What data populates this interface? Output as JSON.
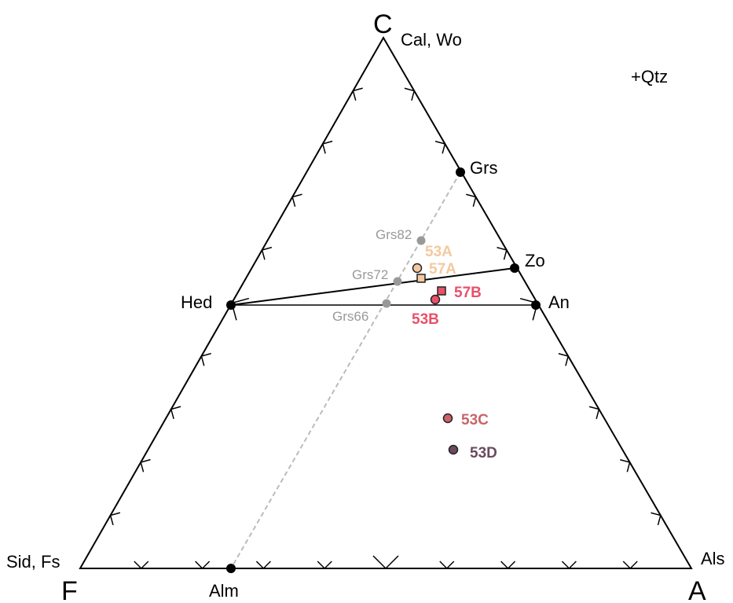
{
  "vertices": {
    "C": {
      "letter": "C",
      "minerals": "Cal, Wo"
    },
    "F": {
      "letter": "F",
      "minerals": "Sid, Fs"
    },
    "A": {
      "letter": "A",
      "minerals": "Als"
    }
  },
  "assemblage_note": "+Qtz",
  "phases": {
    "grs": "Grs",
    "zo": "Zo",
    "an": "An",
    "hed": "Hed",
    "alm": "Alm"
  },
  "garnet_points": {
    "grs82": "Grs82",
    "grs72": "Grs72",
    "grs66": "Grs66"
  },
  "samples": [
    {
      "id": "53A",
      "label": "53A",
      "marker": "circle",
      "color": "#f5c8a0",
      "label_color": "#f5c8a0"
    },
    {
      "id": "57A",
      "label": "57A",
      "marker": "square",
      "color": "#f5c8a0",
      "label_color": "#f5c8a0"
    },
    {
      "id": "57B",
      "label": "57B",
      "marker": "square",
      "color": "#e9506a",
      "label_color": "#e9506a"
    },
    {
      "id": "53B",
      "label": "53B",
      "marker": "circle",
      "color": "#e9506a",
      "label_color": "#e9506a"
    },
    {
      "id": "53C",
      "label": "53C",
      "marker": "circle",
      "color": "#c9646a",
      "label_color": "#c9646a"
    },
    {
      "id": "53D",
      "label": "53D",
      "marker": "circle",
      "color": "#6b4a5e",
      "label_color": "#6b4a5e"
    }
  ],
  "colors": {
    "frame": "#000000",
    "garnet_line": "#bbbbbb",
    "garnet_points": "#999999"
  }
}
